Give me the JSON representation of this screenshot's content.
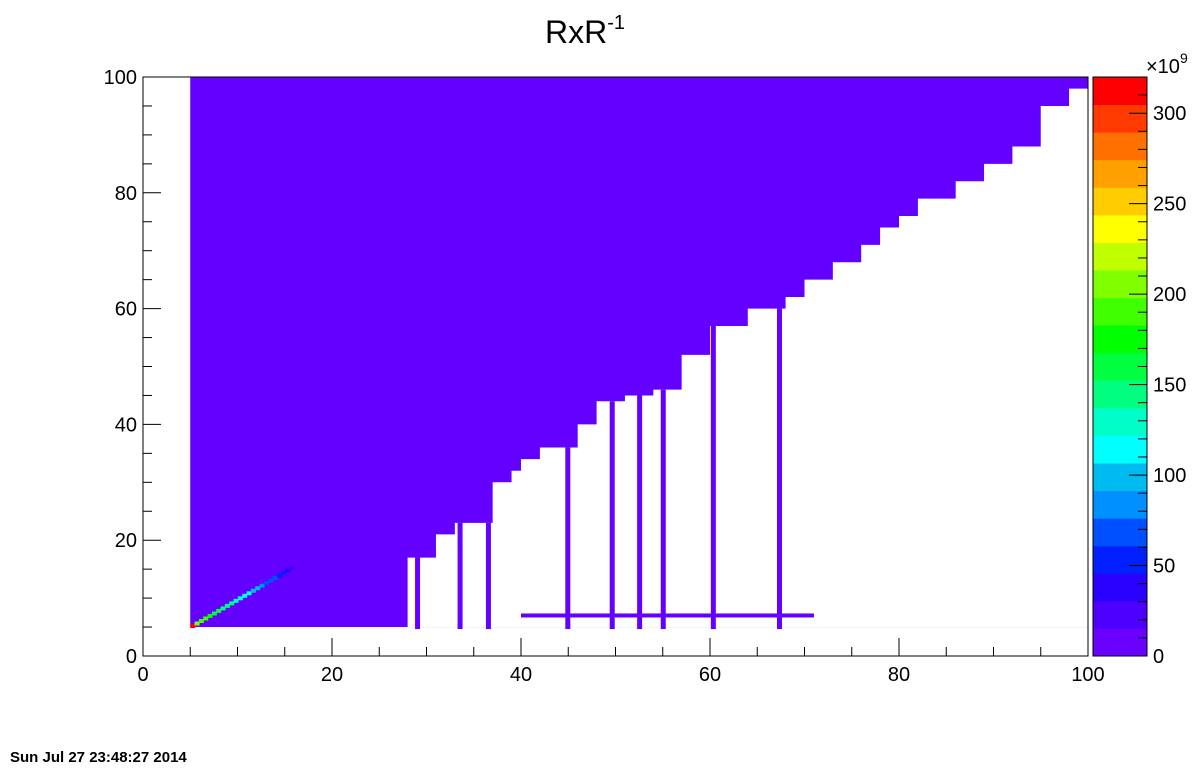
{
  "timestamp": "Sun Jul 27 23:48:27 2014",
  "chart_data": {
    "type": "heatmap",
    "title": "RxR",
    "title_superscript": "-1",
    "xlabel": "",
    "ylabel": "",
    "xlim": [
      0,
      100
    ],
    "ylim": [
      0,
      100
    ],
    "x_ticks": [
      "0",
      "20",
      "40",
      "60",
      "80",
      "100"
    ],
    "y_ticks": [
      "0",
      "20",
      "40",
      "60",
      "80",
      "100"
    ],
    "colorbar": {
      "range": [
        0,
        320
      ],
      "exponent_label": "×10",
      "exponent_power": "9",
      "ticks": [
        "0",
        "50",
        "100",
        "150",
        "200",
        "250",
        "300"
      ],
      "palette": [
        "#6a00ff",
        "#4d00ff",
        "#2a00ff",
        "#0020ff",
        "#0050ff",
        "#0090ff",
        "#00bbf0",
        "#00ffff",
        "#00ffc8",
        "#00ff80",
        "#00ff40",
        "#00ff00",
        "#40ff00",
        "#80ff00",
        "#c0ff00",
        "#ffff00",
        "#ffcc00",
        "#ffa000",
        "#ff7000",
        "#ff3a00",
        "#ff0000"
      ]
    },
    "base_value": 5,
    "base_color": "#6300ff",
    "filled_region": {
      "x_range": [
        5,
        100
      ],
      "y_min": 5,
      "y_max": 100,
      "upper_left_boundary": [
        [
          5,
          100
        ],
        [
          100,
          100
        ]
      ],
      "empty_region_boundary": [
        [
          28,
          5
        ],
        [
          28,
          17
        ],
        [
          31,
          17
        ],
        [
          31,
          21
        ],
        [
          33,
          21
        ],
        [
          33,
          23
        ],
        [
          37,
          23
        ],
        [
          37,
          30
        ],
        [
          39,
          30
        ],
        [
          39,
          32
        ],
        [
          40,
          32
        ],
        [
          40,
          34
        ],
        [
          42,
          34
        ],
        [
          42,
          36
        ],
        [
          46,
          36
        ],
        [
          46,
          40
        ],
        [
          48,
          40
        ],
        [
          48,
          44
        ],
        [
          51,
          44
        ],
        [
          51,
          45
        ],
        [
          54,
          45
        ],
        [
          54,
          46
        ],
        [
          57,
          46
        ],
        [
          57,
          52
        ],
        [
          60,
          52
        ],
        [
          60,
          57
        ],
        [
          64,
          57
        ],
        [
          64,
          60
        ],
        [
          68,
          60
        ],
        [
          68,
          62
        ],
        [
          70,
          62
        ],
        [
          70,
          65
        ],
        [
          73,
          65
        ],
        [
          73,
          68
        ],
        [
          76,
          68
        ],
        [
          76,
          71
        ],
        [
          78,
          71
        ],
        [
          78,
          74
        ],
        [
          80,
          74
        ],
        [
          80,
          76
        ],
        [
          82,
          76
        ],
        [
          82,
          79
        ],
        [
          86,
          79
        ],
        [
          86,
          82
        ],
        [
          89,
          82
        ],
        [
          89,
          85
        ],
        [
          92,
          85
        ],
        [
          92,
          88
        ],
        [
          95,
          88
        ],
        [
          95,
          95
        ],
        [
          98,
          95
        ],
        [
          98,
          98
        ],
        [
          100,
          98
        ],
        [
          100,
          5
        ]
      ]
    },
    "stripes_x": [
      29.0,
      33.5,
      36.5,
      44.9,
      49.6,
      52.5,
      55.0,
      60.3,
      67.3
    ],
    "horizontal_band": {
      "x_range": [
        40,
        71
      ],
      "y": 7
    },
    "diagonal_hot_cells": {
      "x_range": [
        5,
        16
      ],
      "peak_value": 320
    }
  }
}
